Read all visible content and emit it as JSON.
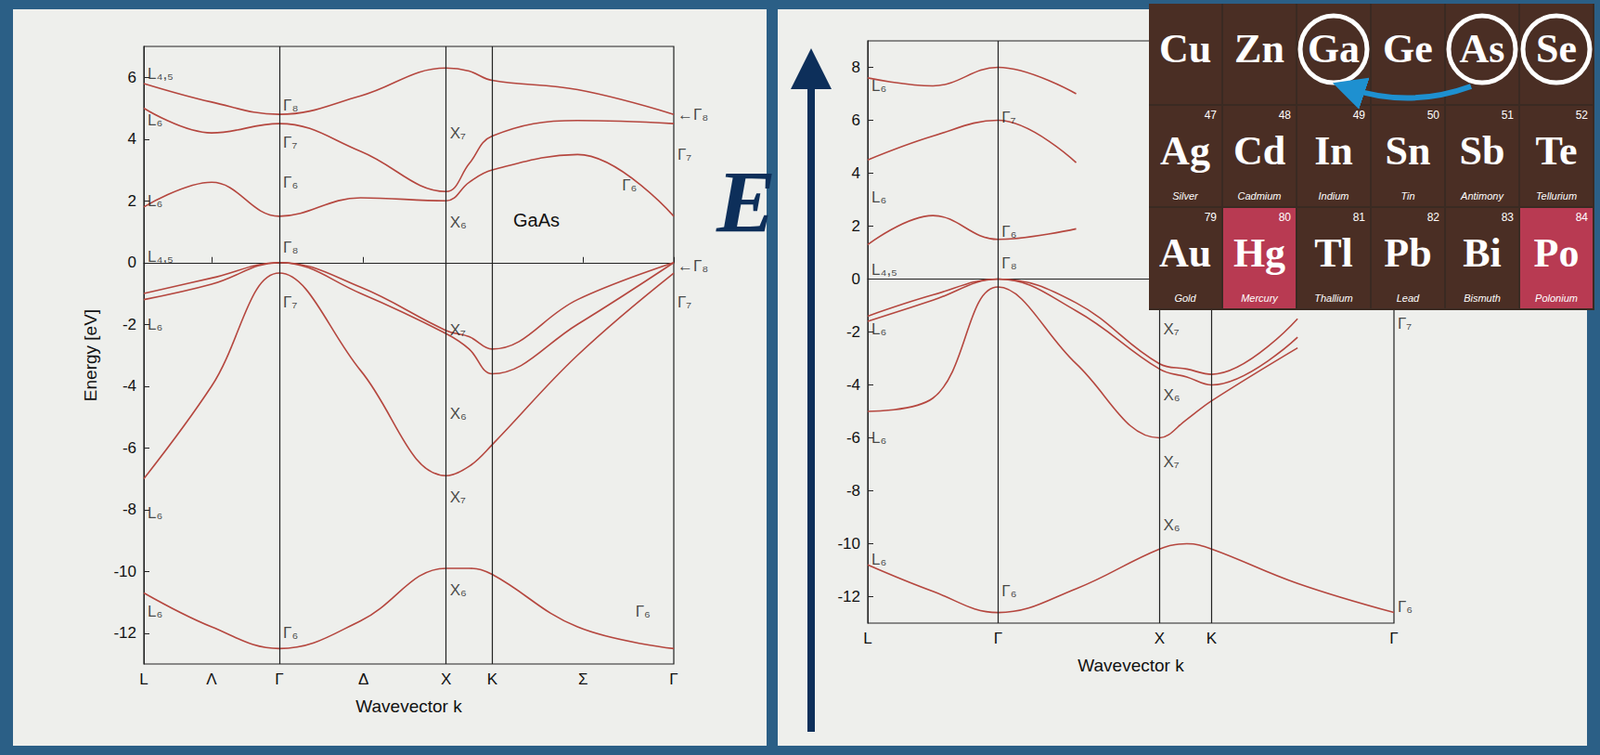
{
  "chart_data": [
    {
      "type": "line",
      "title": "GaAs",
      "xlabel": "Wavevector k",
      "ylabel": "Energy [eV]",
      "color": "#b5473f",
      "grid": false,
      "xlim": [
        0,
        3.91
      ],
      "xticks": [
        {
          "value": 0,
          "label": "L"
        },
        {
          "value": 0.5,
          "label": "Λ"
        },
        {
          "value": 1,
          "label": "Γ"
        },
        {
          "value": 1.62,
          "label": "Δ"
        },
        {
          "value": 2.23,
          "label": "X"
        },
        {
          "value": 2.57,
          "label": "K"
        },
        {
          "value": 3.24,
          "label": "Σ"
        },
        {
          "value": 3.91,
          "label": "Γ"
        }
      ],
      "vlines": [
        1,
        2.23,
        2.57
      ],
      "ylim": [
        -13,
        7
      ],
      "yticks": [
        -12,
        -10,
        -8,
        -6,
        -4,
        -2,
        0,
        2,
        4,
        6
      ],
      "x": [
        0,
        0.5,
        1,
        1.6,
        2.23,
        2.4,
        2.57,
        3.2,
        3.91
      ],
      "series": [
        {
          "values": [
            -10.7,
            -11.8,
            -12.5,
            -11.6,
            -9.9,
            -9.9,
            -10.1,
            -11.8,
            -12.5
          ]
        },
        {
          "values": [
            -7.0,
            -4.0,
            -0.34,
            -3.5,
            -6.9,
            -6.6,
            -5.9,
            -3.0,
            -0.34
          ]
        },
        {
          "values": [
            -1.2,
            -0.7,
            0,
            -1.0,
            -2.3,
            -2.8,
            -3.6,
            -2.0,
            0
          ]
        },
        {
          "values": [
            -1.0,
            -0.5,
            0,
            -0.8,
            -2.2,
            -2.4,
            -2.8,
            -1.2,
            0
          ]
        },
        {
          "values": [
            1.8,
            2.6,
            1.5,
            2.1,
            2.0,
            2.6,
            3.0,
            3.5,
            1.5
          ]
        },
        {
          "values": [
            5.0,
            4.2,
            4.5,
            3.6,
            2.3,
            3.2,
            4.1,
            4.6,
            4.5
          ]
        },
        {
          "values": [
            5.8,
            5.2,
            4.8,
            5.4,
            6.3,
            6.2,
            5.9,
            5.6,
            4.8
          ]
        }
      ],
      "annotations": [
        {
          "text": "L₄,₅",
          "x": 0,
          "y": 6.1
        },
        {
          "text": "L₆",
          "x": 0,
          "y": 4.6
        },
        {
          "text": "L₆",
          "x": 0,
          "y": 2.0
        },
        {
          "text": "L₄,₅",
          "x": 0,
          "y": 0.2
        },
        {
          "text": "L₆",
          "x": 0,
          "y": -2.0
        },
        {
          "text": "L₆",
          "x": 0,
          "y": -8.1
        },
        {
          "text": "L₆",
          "x": 0,
          "y": -11.3
        },
        {
          "text": "Γ₈",
          "x": 1,
          "y": 5.1
        },
        {
          "text": "Γ₇",
          "x": 1,
          "y": 3.9
        },
        {
          "text": "Γ₆",
          "x": 1,
          "y": 2.6
        },
        {
          "text": "Γ₈",
          "x": 1,
          "y": 0.5
        },
        {
          "text": "Γ₇",
          "x": 1,
          "y": -1.3
        },
        {
          "text": "Γ₆",
          "x": 1,
          "y": -12.0
        },
        {
          "text": "X₇",
          "x": 2.23,
          "y": 4.2
        },
        {
          "text": "X₆",
          "x": 2.23,
          "y": 1.3
        },
        {
          "text": "X₇",
          "x": 2.23,
          "y": -2.2
        },
        {
          "text": "X₆",
          "x": 2.23,
          "y": -4.9
        },
        {
          "text": "X₇",
          "x": 2.23,
          "y": -7.6
        },
        {
          "text": "X₆",
          "x": 2.23,
          "y": -10.6
        },
        {
          "text": "←Γ₈",
          "x": 3.91,
          "y": 4.8
        },
        {
          "text": "Γ₇",
          "x": 3.91,
          "y": 3.5
        },
        {
          "text": "Γ₆",
          "x": 3.5,
          "y": 2.5
        },
        {
          "text": "←Γ₈",
          "x": 3.91,
          "y": -0.1
        },
        {
          "text": "Γ₇",
          "x": 3.91,
          "y": -1.3
        },
        {
          "text": "Γ₆",
          "x": 3.6,
          "y": -11.3
        }
      ]
    },
    {
      "type": "line",
      "xlabel": "Wavevector k",
      "color": "#b5473f",
      "grid": false,
      "xlim": [
        0,
        4.04
      ],
      "xticks": [
        {
          "value": 0,
          "label": "L"
        },
        {
          "value": 1,
          "label": "Γ"
        },
        {
          "value": 2.24,
          "label": "X"
        },
        {
          "value": 2.64,
          "label": "K"
        },
        {
          "value": 4.04,
          "label": "Γ"
        }
      ],
      "vlines": [
        1,
        2.24,
        2.64
      ],
      "ylim": [
        -13,
        9
      ],
      "yticks": [
        -12,
        -10,
        -8,
        -6,
        -4,
        -2,
        0,
        2,
        4,
        6,
        8
      ],
      "x": [
        0,
        0.5,
        1,
        1.6,
        2.24,
        2.45,
        2.64,
        3.3,
        4.04
      ],
      "series": [
        {
          "values": [
            -10.8,
            -11.8,
            -12.6,
            -11.7,
            -10.2,
            -10.0,
            -10.2,
            -11.5,
            -12.6
          ]
        },
        {
          "values": [
            -5.0,
            -4.5,
            -0.3,
            -3.2,
            -6.0,
            -5.3,
            -4.6,
            -2.6,
            null
          ]
        },
        {
          "values": [
            -1.6,
            -0.8,
            0,
            -1.2,
            -3.4,
            -3.7,
            -4.0,
            -2.2,
            null
          ]
        },
        {
          "values": [
            -1.4,
            -0.6,
            0,
            -0.9,
            -3.2,
            -3.4,
            -3.6,
            -1.5,
            null
          ]
        },
        {
          "values": [
            1.3,
            2.4,
            1.5,
            1.9,
            null,
            null,
            null,
            null,
            null
          ]
        },
        {
          "values": [
            4.5,
            5.4,
            6.0,
            4.4,
            null,
            null,
            null,
            null,
            null
          ]
        },
        {
          "values": [
            7.6,
            7.3,
            8.0,
            7.0,
            null,
            null,
            null,
            null,
            null
          ]
        }
      ],
      "annotations": [
        {
          "text": "L₆",
          "x": 0,
          "y": 7.3
        },
        {
          "text": "L₆",
          "x": 0,
          "y": 3.1
        },
        {
          "text": "L₄,₅",
          "x": 0,
          "y": 0.35
        },
        {
          "text": "L₆",
          "x": 0,
          "y": -1.9
        },
        {
          "text": "L₆",
          "x": 0,
          "y": -6.0
        },
        {
          "text": "L₆",
          "x": 0,
          "y": -10.6
        },
        {
          "text": "Γ₇",
          "x": 1,
          "y": 6.1
        },
        {
          "text": "Γ₆",
          "x": 1,
          "y": 1.8
        },
        {
          "text": "Γ₈",
          "x": 1,
          "y": 0.6
        },
        {
          "text": "Γ₆",
          "x": 1,
          "y": -11.8
        },
        {
          "text": "X₇",
          "x": 2.24,
          "y": -1.9
        },
        {
          "text": "X₆",
          "x": 2.24,
          "y": -4.4
        },
        {
          "text": "X₇",
          "x": 2.24,
          "y": -6.9
        },
        {
          "text": "X₆",
          "x": 2.24,
          "y": -9.3
        },
        {
          "text": "Γ₇",
          "x": 4.04,
          "y": -1.7
        },
        {
          "text": "Γ₆",
          "x": 4.04,
          "y": -12.4
        }
      ]
    }
  ],
  "arrow_label": "E",
  "periodic_table": {
    "rows": [
      [
        {
          "symbol": "Cu",
          "color": "#4a2e24"
        },
        {
          "symbol": "Zn",
          "color": "#4a2e24"
        },
        {
          "symbol": "Ga",
          "color": "#4a2e24"
        },
        {
          "symbol": "Ge",
          "color": "#4a2e24"
        },
        {
          "symbol": "As",
          "color": "#4a2e24"
        },
        {
          "symbol": "Se",
          "color": "#4a2e24"
        }
      ],
      [
        {
          "symbol": "Ag",
          "number": 47,
          "name": "Silver",
          "color": "#4a2e24"
        },
        {
          "symbol": "Cd",
          "number": 48,
          "name": "Cadmium",
          "color": "#4a2e24"
        },
        {
          "symbol": "In",
          "number": 49,
          "name": "Indium",
          "color": "#4a2e24"
        },
        {
          "symbol": "Sn",
          "number": 50,
          "name": "Tin",
          "color": "#4a2e24"
        },
        {
          "symbol": "Sb",
          "number": 51,
          "name": "Antimony",
          "color": "#4a2e24"
        },
        {
          "symbol": "Te",
          "number": 52,
          "name": "Tellurium",
          "color": "#4a2e24"
        }
      ],
      [
        {
          "symbol": "Au",
          "number": 79,
          "name": "Gold",
          "color": "#4a2e24"
        },
        {
          "symbol": "Hg",
          "number": 80,
          "name": "Mercury",
          "color": "#b83a52"
        },
        {
          "symbol": "Tl",
          "number": 81,
          "name": "Thallium",
          "color": "#4a2e24"
        },
        {
          "symbol": "Pb",
          "number": 82,
          "name": "Lead",
          "color": "#4a2e24"
        },
        {
          "symbol": "Bi",
          "number": 83,
          "name": "Bismuth",
          "color": "#4a2e24"
        },
        {
          "symbol": "Po",
          "number": 84,
          "name": "Polonium",
          "color": "#b83a52"
        }
      ]
    ],
    "circled": [
      "Ga",
      "As",
      "Se"
    ],
    "arrow": {
      "from": "As",
      "to": "Ga"
    }
  }
}
